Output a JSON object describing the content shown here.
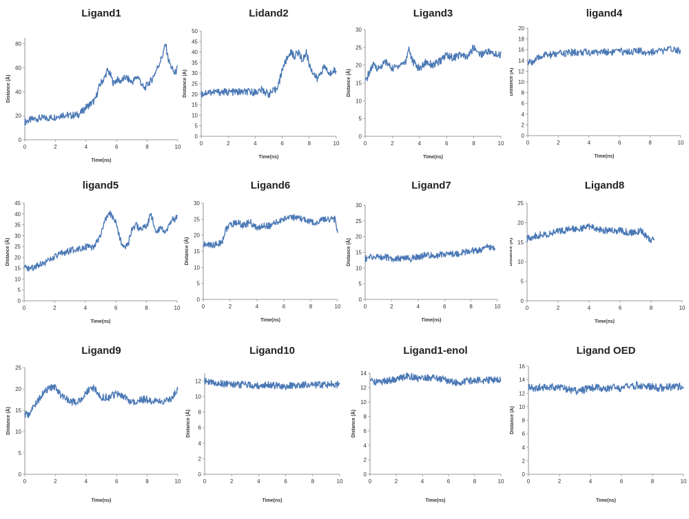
{
  "chart_data": [
    {
      "type": "line",
      "title": "Ligand1",
      "xlabel": "Time(ns)",
      "ylabel": "Distance (Å)",
      "xlim": [
        0,
        10
      ],
      "ylim": [
        0,
        85
      ],
      "xticks": [
        0,
        2,
        4,
        6,
        8,
        10
      ],
      "yticks": [
        0,
        20,
        40,
        60,
        80
      ],
      "color": "#4A78B5",
      "x": [
        0,
        0.5,
        1,
        1.5,
        2,
        2.5,
        3,
        3.5,
        3.8,
        4,
        4.3,
        4.6,
        4.8,
        5,
        5.2,
        5.4,
        5.6,
        5.8,
        6,
        6.3,
        6.6,
        7,
        7.4,
        7.8,
        8,
        8.3,
        8.6,
        9,
        9.2,
        9.4,
        9.6,
        9.8,
        10
      ],
      "y": [
        15,
        17,
        18,
        18,
        19,
        21,
        20,
        21,
        24,
        27,
        30,
        33,
        42,
        48,
        51,
        58,
        54,
        47,
        50,
        49,
        52,
        48,
        53,
        42,
        46,
        50,
        58,
        70,
        80,
        66,
        60,
        55,
        60
      ]
    },
    {
      "type": "line",
      "title": "Lidand2",
      "xlabel": "Time(ns)",
      "ylabel": "Distance (Å)",
      "xlim": [
        0,
        10
      ],
      "ylim": [
        0,
        50
      ],
      "xticks": [
        0,
        2,
        4,
        6,
        8,
        10
      ],
      "yticks": [
        0,
        5,
        10,
        15,
        20,
        25,
        30,
        35,
        40,
        45,
        50
      ],
      "color": "#4A78B5",
      "x": [
        0,
        0.5,
        1,
        2,
        3,
        4,
        4.5,
        5,
        5.5,
        5.8,
        6,
        6.3,
        6.6,
        6.9,
        7.2,
        7.5,
        7.8,
        8,
        8.3,
        8.6,
        8.9,
        9.2,
        9.5,
        9.8,
        10
      ],
      "y": [
        20,
        21,
        21,
        21,
        21,
        21,
        22,
        20,
        22,
        26,
        32,
        36,
        40,
        38,
        40,
        36,
        40,
        34,
        30,
        27,
        31,
        33,
        29,
        32,
        30
      ]
    },
    {
      "type": "line",
      "title": "Ligand3",
      "xlabel": "Time(ns)",
      "ylabel": "Distance (Å)",
      "xlim": [
        0,
        10
      ],
      "ylim": [
        0,
        30
      ],
      "xticks": [
        0,
        2,
        4,
        6,
        8,
        10
      ],
      "yticks": [
        0,
        5,
        10,
        15,
        20,
        25,
        30
      ],
      "color": "#4A78B5",
      "x": [
        0,
        0.3,
        0.6,
        1,
        1.5,
        2,
        2.5,
        3,
        3.2,
        3.5,
        4,
        4.5,
        5,
        5.5,
        6,
        6.5,
        7,
        7.5,
        8,
        8.5,
        9,
        9.5,
        10
      ],
      "y": [
        15,
        18,
        20,
        19,
        21,
        19,
        20,
        21,
        25,
        21,
        19,
        21,
        20,
        21,
        23,
        22,
        23,
        22,
        25,
        23,
        24,
        23,
        23
      ]
    },
    {
      "type": "line",
      "title": "ligand4",
      "xlabel": "Time(ns)",
      "ylabel": "Distance (Å)",
      "xlim": [
        0,
        10
      ],
      "ylim": [
        0,
        20
      ],
      "xticks": [
        0,
        2,
        4,
        6,
        8,
        10
      ],
      "yticks": [
        0,
        2,
        4,
        6,
        8,
        10,
        12,
        14,
        16,
        18,
        20
      ],
      "color": "#4A78B5",
      "x": [
        0,
        0.5,
        1,
        1.5,
        2,
        3,
        4,
        5,
        6,
        7,
        8,
        9,
        9.5,
        10
      ],
      "y": [
        13.5,
        14,
        15,
        15,
        15.2,
        15.5,
        15.5,
        15.6,
        15.6,
        15.7,
        15.6,
        15.8,
        16.2,
        15.8
      ]
    },
    {
      "type": "line",
      "title": "ligand5",
      "xlabel": "Time(ns)",
      "ylabel": "Distance (Å)",
      "xlim": [
        0,
        10
      ],
      "ylim": [
        0,
        45
      ],
      "xticks": [
        0,
        2,
        4,
        6,
        8,
        10
      ],
      "yticks": [
        0,
        5,
        10,
        15,
        20,
        25,
        30,
        35,
        40,
        45
      ],
      "color": "#4A78B5",
      "x": [
        0,
        0.5,
        1,
        1.5,
        2,
        2.5,
        3,
        3.5,
        4,
        4.5,
        5,
        5.3,
        5.6,
        5.9,
        6.2,
        6.5,
        6.8,
        7,
        7.3,
        7.6,
        8,
        8.3,
        8.6,
        9,
        9.3,
        9.6,
        10
      ],
      "y": [
        15,
        15,
        17,
        18,
        20,
        22,
        23,
        24,
        25,
        24,
        30,
        37,
        40,
        38,
        30,
        25,
        26,
        32,
        35,
        33,
        34,
        40,
        32,
        34,
        31,
        37,
        38
      ]
    },
    {
      "type": "line",
      "title": "Ligand6",
      "xlabel": "Time(ns)",
      "ylabel": "Distance (Å)",
      "xlim": [
        0,
        10
      ],
      "ylim": [
        0,
        30
      ],
      "xticks": [
        0,
        2,
        4,
        6,
        8,
        10
      ],
      "yticks": [
        0,
        5,
        10,
        15,
        20,
        25,
        30
      ],
      "color": "#4A78B5",
      "x": [
        0,
        0.5,
        1,
        1.4,
        1.7,
        2,
        2.5,
        3,
        3.5,
        4,
        4.5,
        5,
        5.5,
        6,
        6.5,
        7,
        7.5,
        8,
        8.5,
        9,
        9.5,
        9.8,
        10
      ],
      "y": [
        17,
        17,
        17,
        18,
        22,
        23,
        24,
        23,
        24,
        22,
        23,
        23,
        24,
        25,
        26,
        25,
        25,
        24,
        24,
        25,
        25,
        25,
        21
      ]
    },
    {
      "type": "line",
      "title": "Ligand7",
      "xlabel": "Time(ns)",
      "ylabel": "Distance (Å)",
      "xlim": [
        0,
        10
      ],
      "ylim": [
        0,
        30
      ],
      "xticks": [
        0,
        2,
        4,
        6,
        8,
        10
      ],
      "yticks": [
        0,
        5,
        10,
        15,
        20,
        25,
        30
      ],
      "color": "#4A78B5",
      "x": [
        0,
        0.5,
        1,
        1.5,
        2,
        2.5,
        3,
        3.5,
        4,
        4.5,
        5,
        5.5,
        6,
        6.5,
        7,
        7.5,
        8,
        8.5,
        9,
        9.3,
        9.6,
        9.8
      ],
      "y": [
        13,
        13.5,
        13.5,
        13.5,
        13,
        13,
        13,
        13,
        13.5,
        14,
        14,
        14,
        14.5,
        14.5,
        14.5,
        15,
        15.5,
        15.5,
        16,
        17,
        16.5,
        16
      ]
    },
    {
      "type": "line",
      "title": "Ligand8",
      "xlabel": "Time(ns)",
      "ylabel": "Distance (Å)",
      "xlim": [
        0,
        10
      ],
      "ylim": [
        0,
        25
      ],
      "xticks": [
        0,
        2,
        4,
        6,
        8,
        10
      ],
      "yticks": [
        0,
        5,
        10,
        15,
        20,
        25
      ],
      "color": "#4A78B5",
      "x": [
        0,
        0.5,
        1,
        1.5,
        2,
        2.5,
        3,
        3.5,
        4,
        4.5,
        5,
        5.5,
        6,
        6.5,
        7,
        7.3,
        7.6,
        7.8,
        8,
        8.2
      ],
      "y": [
        16,
        16.5,
        17,
        17,
        18,
        18,
        18.5,
        18.5,
        19,
        18.5,
        18,
        18,
        18,
        17.5,
        17.5,
        18,
        17,
        16,
        15.5,
        16
      ]
    },
    {
      "type": "line",
      "title": "Ligand9",
      "xlabel": "Time(ns)",
      "ylabel": "Distance (Å)",
      "xlim": [
        0,
        10
      ],
      "ylim": [
        0,
        25
      ],
      "xticks": [
        0,
        2,
        4,
        6,
        8,
        10
      ],
      "yticks": [
        0,
        5,
        10,
        15,
        20,
        25
      ],
      "color": "#4A78B5",
      "x": [
        0,
        0.3,
        0.6,
        1,
        1.5,
        2,
        2.5,
        3,
        3.5,
        4,
        4.3,
        4.6,
        5,
        5.5,
        6,
        6.5,
        7,
        7.5,
        8,
        8.5,
        9,
        9.5,
        9.8,
        10
      ],
      "y": [
        14,
        14,
        16,
        18,
        20,
        20.5,
        18,
        17,
        17,
        19,
        20.5,
        20,
        18,
        18,
        19,
        18,
        17,
        17.5,
        17.5,
        17,
        17,
        17.5,
        19,
        20
      ]
    },
    {
      "type": "line",
      "title": "Ligand10",
      "xlabel": "Time(ns)",
      "ylabel": "Distance (Å)",
      "xlim": [
        0,
        10
      ],
      "ylim": [
        0,
        13
      ],
      "xticks": [
        0,
        2,
        4,
        6,
        8,
        10
      ],
      "yticks": [
        0,
        2,
        4,
        6,
        8,
        10,
        12
      ],
      "color": "#4A78B5",
      "x": [
        0,
        0.5,
        1,
        1.5,
        2,
        2.5,
        3,
        3.5,
        4,
        4.5,
        5,
        5.5,
        6,
        6.5,
        7,
        7.5,
        8,
        8.5,
        9,
        9.5,
        10
      ],
      "y": [
        12,
        11.8,
        11.7,
        11.6,
        11.6,
        11.5,
        11.5,
        11.4,
        11.4,
        11.5,
        11.4,
        11.4,
        11.3,
        11.4,
        11.4,
        11.5,
        11.4,
        11.5,
        11.5,
        11.6,
        11.5
      ]
    },
    {
      "type": "line",
      "title": "Ligand1-enol",
      "xlabel": "Time(ns)",
      "ylabel": "Distance (Å)",
      "xlim": [
        0,
        10
      ],
      "ylim": [
        0,
        14
      ],
      "xticks": [
        0,
        2,
        4,
        6,
        8,
        10
      ],
      "yticks": [
        0,
        2,
        4,
        6,
        8,
        10,
        12,
        14
      ],
      "color": "#4A78B5",
      "x": [
        0,
        0.5,
        1,
        1.5,
        2,
        2.5,
        3,
        3.5,
        4,
        4.5,
        5,
        5.5,
        6,
        6.5,
        7,
        7.5,
        8,
        8.5,
        9,
        9.5,
        10
      ],
      "y": [
        12.8,
        12.8,
        12.9,
        13,
        13.2,
        13.4,
        13.6,
        13.3,
        13.2,
        13.4,
        13.4,
        13.2,
        12.9,
        12.7,
        12.7,
        12.9,
        13,
        13,
        13,
        13.1,
        13
      ]
    },
    {
      "type": "line",
      "title": "Ligand OED",
      "xlabel": "Time(ns)",
      "ylabel": "Distance (Å)",
      "xlim": [
        0,
        10
      ],
      "ylim": [
        0,
        16
      ],
      "xticks": [
        0,
        2,
        4,
        6,
        8,
        10
      ],
      "yticks": [
        0,
        2,
        4,
        6,
        8,
        10,
        12,
        14,
        16
      ],
      "color": "#4A78B5",
      "x": [
        0,
        0.5,
        1,
        1.5,
        2,
        2.5,
        3,
        3.5,
        4,
        4.5,
        5,
        5.5,
        6,
        6.5,
        7,
        7.5,
        8,
        8.5,
        9,
        9.5,
        10
      ],
      "y": [
        12.8,
        12.8,
        12.9,
        13,
        12.8,
        12.6,
        12.3,
        12.5,
        12.7,
        12.8,
        12.6,
        12.8,
        12.7,
        13,
        13.2,
        13,
        12.9,
        12.8,
        12.9,
        13,
        13
      ]
    }
  ]
}
